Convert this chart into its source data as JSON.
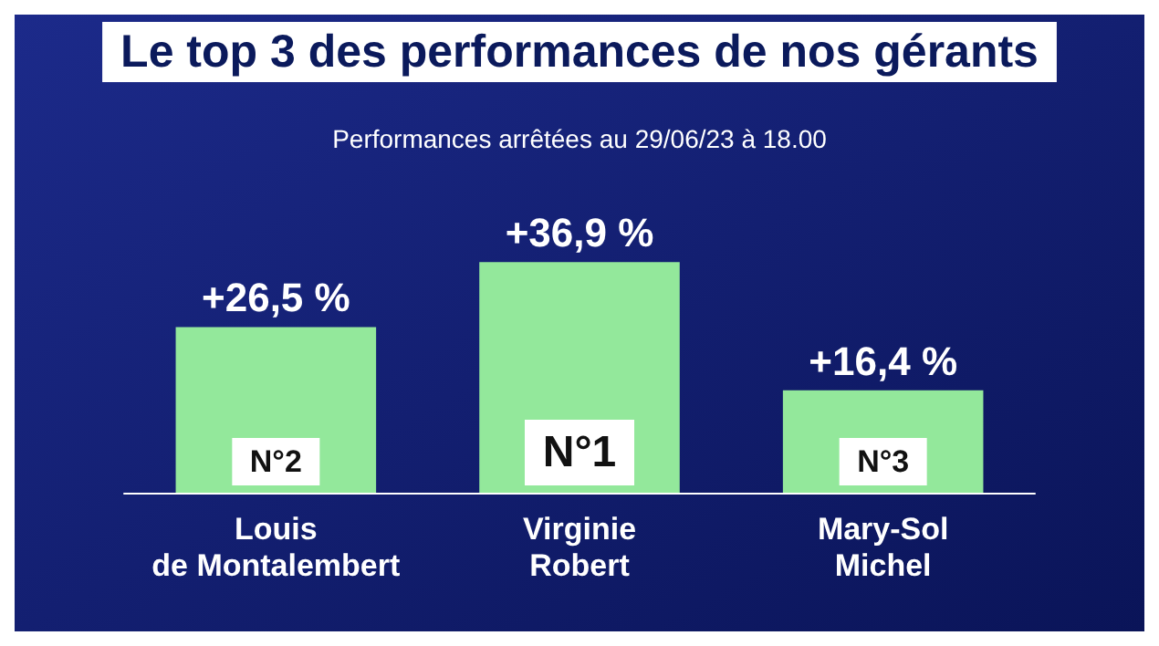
{
  "chart_data": {
    "type": "bar",
    "title": "Le top 3 des performances de nos gérants",
    "subtitle": "Performances arrêtées au 29/06/23 à 18.00",
    "categories": [
      "Louis\nde Montalembert",
      "Virginie\nRobert",
      "Mary-Sol\nMichel"
    ],
    "values": [
      26.5,
      36.9,
      16.4
    ],
    "color": "#93e89b",
    "value_labels": [
      "+26,5 %",
      "+36,9 %",
      "+16,4 %"
    ],
    "annotations": [
      "N°2",
      "N°1",
      "N°3"
    ]
  }
}
